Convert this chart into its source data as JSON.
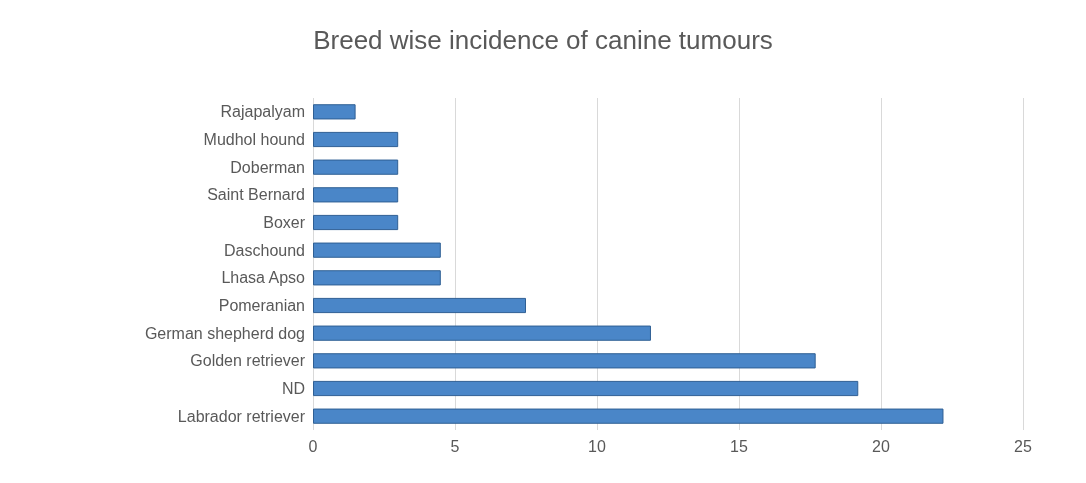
{
  "chart_data": {
    "type": "bar",
    "title": "Breed wise incidence of canine tumours",
    "orientation": "horizontal",
    "categories": [
      "Rajapalyam",
      "Mudhol hound",
      "Doberman",
      "Saint Bernard",
      "Boxer",
      "Daschound",
      "Lhasa Apso",
      "Pomeranian",
      "German shepherd dog",
      "Golden retriever",
      "ND",
      "Labrador retriever"
    ],
    "values": [
      1.5,
      3,
      3,
      3,
      3,
      4.5,
      4.5,
      7.5,
      11.9,
      17.7,
      19.2,
      22.2
    ],
    "color": "#4a86c8",
    "xlim": [
      0,
      25
    ],
    "xticks": [
      0,
      5,
      10,
      15,
      20,
      25
    ],
    "grid": "x"
  }
}
